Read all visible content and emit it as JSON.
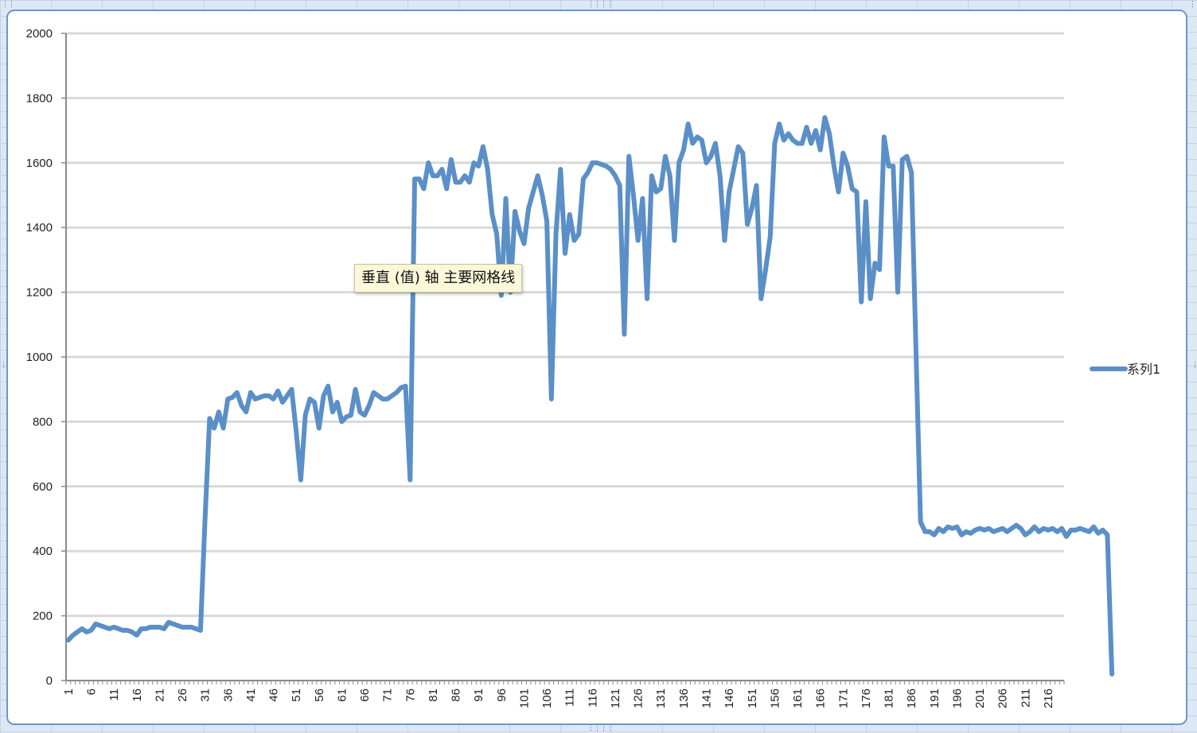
{
  "tooltip": {
    "text": "垂直 (值) 轴 主要网格线"
  },
  "colors": {
    "series": "#5b8fc7",
    "gridline": "#d9d9d9",
    "axis": "#8a8a8a",
    "frame": "#6f95c8"
  },
  "chart_data": {
    "type": "line",
    "title": "",
    "xlabel": "",
    "ylabel": "",
    "ylim": [
      0,
      2000
    ],
    "yticks": [
      0,
      200,
      400,
      600,
      800,
      1000,
      1200,
      1400,
      1600,
      1800,
      2000
    ],
    "x_count": 219,
    "x_tick_labels": [
      1,
      6,
      11,
      16,
      21,
      26,
      31,
      36,
      41,
      46,
      51,
      56,
      61,
      66,
      71,
      76,
      81,
      86,
      91,
      96,
      101,
      106,
      111,
      116,
      121,
      126,
      131,
      136,
      141,
      146,
      151,
      156,
      161,
      166,
      171,
      176,
      181,
      186,
      191,
      196,
      201,
      206,
      211,
      216
    ],
    "grid": true,
    "legend_position": "right",
    "series": [
      {
        "name": "系列1",
        "values": [
          125,
          140,
          150,
          160,
          150,
          155,
          175,
          170,
          165,
          160,
          165,
          160,
          155,
          155,
          150,
          140,
          160,
          160,
          165,
          165,
          165,
          160,
          180,
          175,
          170,
          165,
          165,
          165,
          160,
          155,
          500,
          810,
          780,
          830,
          780,
          870,
          875,
          890,
          850,
          830,
          890,
          870,
          875,
          880,
          880,
          870,
          895,
          860,
          880,
          900,
          770,
          620,
          820,
          870,
          860,
          780,
          880,
          910,
          830,
          860,
          800,
          815,
          820,
          900,
          830,
          820,
          850,
          890,
          880,
          870,
          870,
          880,
          890,
          905,
          910,
          620,
          1550,
          1550,
          1520,
          1600,
          1560,
          1560,
          1580,
          1520,
          1610,
          1540,
          1540,
          1560,
          1540,
          1600,
          1590,
          1650,
          1580,
          1440,
          1380,
          1190,
          1490,
          1200,
          1450,
          1390,
          1350,
          1460,
          1510,
          1560,
          1500,
          1420,
          870,
          1380,
          1580,
          1320,
          1440,
          1360,
          1380,
          1550,
          1570,
          1600,
          1600,
          1595,
          1590,
          1580,
          1560,
          1530,
          1070,
          1620,
          1500,
          1360,
          1490,
          1180,
          1560,
          1510,
          1520,
          1620,
          1560,
          1360,
          1600,
          1640,
          1720,
          1660,
          1680,
          1670,
          1600,
          1620,
          1660,
          1560,
          1360,
          1510,
          1580,
          1650,
          1630,
          1410,
          1460,
          1530,
          1180,
          1270,
          1370,
          1660,
          1720,
          1670,
          1690,
          1670,
          1660,
          1660,
          1710,
          1660,
          1700,
          1640,
          1740,
          1690,
          1590,
          1510,
          1630,
          1590,
          1520,
          1510,
          1170,
          1480,
          1180,
          1290,
          1270,
          1680,
          1590,
          1590,
          1200,
          1610,
          1620,
          1570,
          1020,
          490,
          460,
          460,
          450,
          470,
          460,
          475,
          470,
          475,
          450,
          460,
          455,
          465,
          470,
          465,
          470,
          460,
          465,
          470,
          460,
          470,
          480,
          470,
          450,
          460,
          475,
          460,
          470,
          465,
          470,
          460,
          470,
          445,
          465,
          465,
          470,
          465,
          460,
          475,
          455,
          465,
          450,
          20
        ]
      }
    ]
  }
}
